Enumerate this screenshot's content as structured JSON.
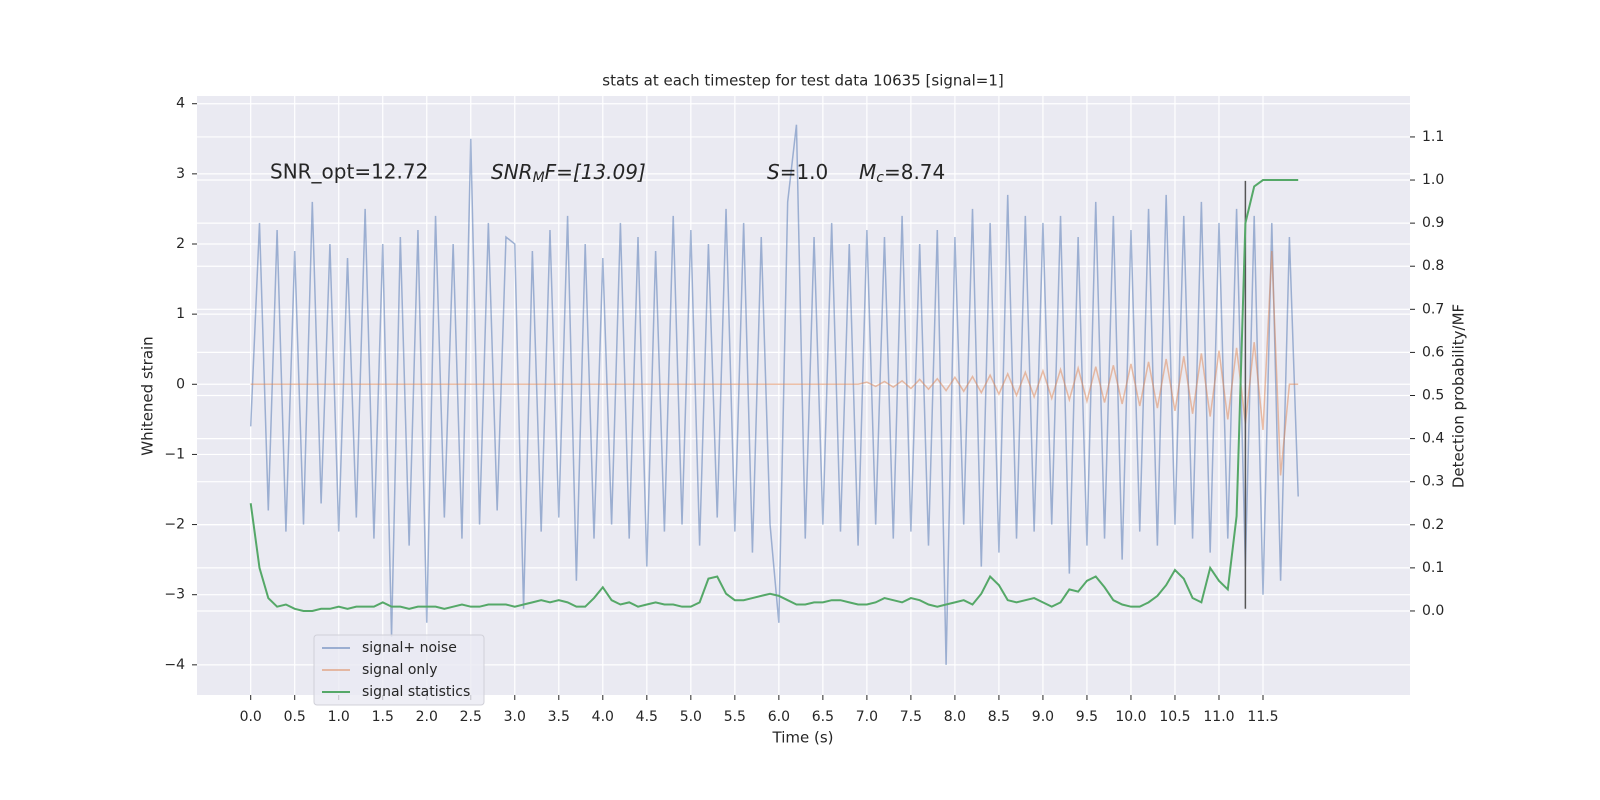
{
  "chart_data": {
    "type": "line",
    "title": "stats at each timestep for test data 10635 [signal=1]",
    "xlabel": "Time (s)",
    "ylabel": "Whitened strain",
    "y2label": "Detection probability/MF",
    "annotations": {
      "snr_opt": "SNR_opt=12.72",
      "snr_mf": {
        "base": "SNR",
        "sub": "M",
        "rest": "F=[13.09]"
      },
      "s": {
        "base": "S",
        "rest": "=1.0"
      },
      "mc": {
        "base": "M",
        "sub": "c",
        "rest": "=8.74"
      }
    },
    "grid": true,
    "legend": "lower left",
    "xlim": [
      -0.61,
      13.17
    ],
    "ylim": [
      -4.43,
      4.11
    ],
    "y2lim": [
      -0.195,
      1.195
    ],
    "xticks": [
      {
        "value": 0,
        "label": "0.0"
      },
      {
        "value": 0.5,
        "label": "0.5"
      },
      {
        "value": 1,
        "label": "1.0"
      },
      {
        "value": 1.5,
        "label": "1.5"
      },
      {
        "value": 2,
        "label": "2.0"
      },
      {
        "value": 2.5,
        "label": "2.5"
      },
      {
        "value": 3,
        "label": "3.0"
      },
      {
        "value": 3.5,
        "label": "3.5"
      },
      {
        "value": 4,
        "label": "4.0"
      },
      {
        "value": 4.5,
        "label": "4.5"
      },
      {
        "value": 5,
        "label": "5.0"
      },
      {
        "value": 5.5,
        "label": "5.5"
      },
      {
        "value": 6,
        "label": "6.0"
      },
      {
        "value": 6.5,
        "label": "6.5"
      },
      {
        "value": 7,
        "label": "7.0"
      },
      {
        "value": 7.5,
        "label": "7.5"
      },
      {
        "value": 8,
        "label": "8.0"
      },
      {
        "value": 8.5,
        "label": "8.5"
      },
      {
        "value": 9,
        "label": "9.0"
      },
      {
        "value": 9.5,
        "label": "9.5"
      },
      {
        "value": 10,
        "label": "10.0"
      },
      {
        "value": 10.5,
        "label": "10.5"
      },
      {
        "value": 11,
        "label": "11.0"
      },
      {
        "value": 11.5,
        "label": "11.5"
      }
    ],
    "yticks": [
      {
        "value": -4,
        "label": "−4"
      },
      {
        "value": -3,
        "label": "−3"
      },
      {
        "value": -2,
        "label": "−2"
      },
      {
        "value": -1,
        "label": "−1"
      },
      0,
      1,
      2,
      3,
      4
    ],
    "y2ticks": [
      {
        "value": 0,
        "label": "0.0"
      },
      {
        "value": 0.1,
        "label": "0.1"
      },
      {
        "value": 0.2,
        "label": "0.2"
      },
      {
        "value": 0.3,
        "label": "0.3"
      },
      {
        "value": 0.4,
        "label": "0.4"
      },
      {
        "value": 0.5,
        "label": "0.5"
      },
      {
        "value": 0.6,
        "label": "0.6"
      },
      {
        "value": 0.7,
        "label": "0.7"
      },
      {
        "value": 0.8,
        "label": "0.8"
      },
      {
        "value": 0.9,
        "label": "0.9"
      },
      {
        "value": 1.0,
        "label": "1.0"
      },
      {
        "value": 1.1,
        "label": "1.1"
      }
    ],
    "x": [
      0,
      0.1,
      0.2,
      0.3,
      0.4,
      0.5,
      0.6,
      0.7,
      0.8,
      0.9,
      1,
      1.1,
      1.2,
      1.3,
      1.4,
      1.5,
      1.6,
      1.7,
      1.8,
      1.9,
      2,
      2.1,
      2.2,
      2.3,
      2.4,
      2.5,
      2.6,
      2.7,
      2.8,
      2.9,
      3,
      3.1,
      3.2,
      3.3,
      3.4,
      3.5,
      3.6,
      3.7,
      3.8,
      3.9,
      4,
      4.1,
      4.2,
      4.3,
      4.4,
      4.5,
      4.6,
      4.7,
      4.8,
      4.9,
      5,
      5.1,
      5.2,
      5.3,
      5.4,
      5.5,
      5.6,
      5.7,
      5.8,
      5.9,
      6,
      6.1,
      6.2,
      6.3,
      6.4,
      6.5,
      6.6,
      6.7,
      6.8,
      6.9,
      7,
      7.1,
      7.2,
      7.3,
      7.4,
      7.5,
      7.6,
      7.7,
      7.8,
      7.9,
      8,
      8.1,
      8.2,
      8.3,
      8.4,
      8.5,
      8.6,
      8.7,
      8.8,
      8.9,
      9,
      9.1,
      9.2,
      9.3,
      9.4,
      9.5,
      9.6,
      9.7,
      9.8,
      9.9,
      10,
      10.1,
      10.2,
      10.3,
      10.4,
      10.5,
      10.6,
      10.7,
      10.8,
      10.9,
      11,
      11.1,
      11.2,
      11.3,
      11.4,
      11.5,
      11.6,
      11.7,
      11.8,
      11.9
    ],
    "series": [
      {
        "name": "signal+ noise",
        "color": "#4c72b0",
        "alpha": 0.5,
        "axis": "y",
        "values": [
          -0.6,
          2.3,
          -1.8,
          2.2,
          -2.1,
          1.9,
          -2.0,
          2.6,
          -1.7,
          2.0,
          -2.1,
          1.8,
          -1.9,
          2.5,
          -2.2,
          2.0,
          -3.6,
          2.1,
          -2.3,
          2.2,
          -3.4,
          2.4,
          -1.9,
          2.0,
          -2.2,
          3.5,
          -2.0,
          2.3,
          -1.8,
          2.1,
          2.0,
          -3.2,
          1.9,
          -2.1,
          2.2,
          -1.9,
          2.4,
          -2.8,
          2.0,
          -2.2,
          1.8,
          -2.0,
          2.3,
          -2.2,
          2.1,
          -2.6,
          1.9,
          -2.1,
          2.4,
          -2.0,
          2.2,
          -2.3,
          2.0,
          -1.9,
          2.5,
          -2.1,
          2.3,
          -2.4,
          2.1,
          -2.0,
          -3.4,
          2.6,
          3.7,
          -2.2,
          2.1,
          -2.0,
          2.3,
          -2.1,
          2.0,
          -2.3,
          2.2,
          -2.0,
          2.1,
          -2.2,
          2.4,
          -2.1,
          2.0,
          -2.3,
          2.2,
          -4.0,
          2.1,
          -2.0,
          2.5,
          -2.6,
          2.3,
          -2.4,
          2.7,
          -2.2,
          2.4,
          -2.1,
          2.3,
          -2.0,
          2.4,
          -2.7,
          2.1,
          -2.3,
          2.6,
          -2.2,
          2.4,
          -2.5,
          2.2,
          -2.1,
          2.5,
          -2.3,
          2.7,
          -2.0,
          2.4,
          -2.2,
          2.6,
          -2.4,
          2.3,
          -2.2,
          2.5,
          -2.6,
          2.4,
          -3.0,
          2.3,
          -2.8,
          2.1,
          -1.6
        ]
      },
      {
        "name": "signal only",
        "color": "#dd8452",
        "alpha": 0.5,
        "axis": "y",
        "values": [
          0,
          0,
          0,
          0,
          0,
          0,
          0,
          0,
          0,
          0,
          0,
          0,
          0,
          0,
          0,
          0,
          0,
          0,
          0,
          0,
          0,
          0,
          0,
          0,
          0,
          0,
          0,
          0,
          0,
          0,
          0,
          0,
          0,
          0,
          0,
          0,
          0,
          0,
          0,
          0,
          0,
          0,
          0,
          0,
          0,
          0,
          0,
          0,
          0,
          0,
          0,
          0,
          0,
          0,
          0,
          0,
          0,
          0,
          0,
          0,
          0,
          0,
          0,
          0,
          0,
          0,
          0,
          0,
          0,
          0,
          0.03,
          -0.03,
          0.04,
          -0.04,
          0.05,
          -0.06,
          0.07,
          -0.07,
          0.08,
          -0.09,
          0.1,
          -0.1,
          0.11,
          -0.12,
          0.13,
          -0.14,
          0.15,
          -0.16,
          0.17,
          -0.18,
          0.19,
          -0.2,
          0.21,
          -0.22,
          0.23,
          -0.24,
          0.25,
          -0.26,
          0.27,
          -0.28,
          0.29,
          -0.31,
          0.32,
          -0.34,
          0.36,
          -0.38,
          0.4,
          -0.42,
          0.44,
          -0.46,
          0.48,
          -0.5,
          0.52,
          -0.56,
          0.6,
          -0.65,
          1.9,
          -1.3,
          0,
          0
        ]
      },
      {
        "name": "signal statistics",
        "color": "#55a868",
        "alpha": 1,
        "axis": "y2",
        "values": [
          0.25,
          0.1,
          0.03,
          0.01,
          0.015,
          0.005,
          0.0,
          0.0,
          0.005,
          0.005,
          0.01,
          0.005,
          0.01,
          0.01,
          0.01,
          0.02,
          0.01,
          0.01,
          0.005,
          0.01,
          0.01,
          0.01,
          0.005,
          0.01,
          0.015,
          0.01,
          0.01,
          0.015,
          0.015,
          0.015,
          0.01,
          0.015,
          0.02,
          0.025,
          0.02,
          0.025,
          0.02,
          0.01,
          0.01,
          0.03,
          0.055,
          0.025,
          0.015,
          0.02,
          0.01,
          0.015,
          0.02,
          0.015,
          0.015,
          0.01,
          0.01,
          0.02,
          0.075,
          0.08,
          0.04,
          0.025,
          0.025,
          0.03,
          0.035,
          0.04,
          0.035,
          0.025,
          0.015,
          0.015,
          0.02,
          0.02,
          0.025,
          0.025,
          0.02,
          0.015,
          0.015,
          0.02,
          0.03,
          0.025,
          0.02,
          0.03,
          0.025,
          0.015,
          0.01,
          0.015,
          0.02,
          0.025,
          0.015,
          0.04,
          0.08,
          0.06,
          0.025,
          0.02,
          0.025,
          0.03,
          0.02,
          0.01,
          0.02,
          0.05,
          0.045,
          0.07,
          0.08,
          0.055,
          0.025,
          0.015,
          0.01,
          0.01,
          0.02,
          0.035,
          0.06,
          0.095,
          0.075,
          0.03,
          0.02,
          0.1,
          0.07,
          0.05,
          0.22,
          0.9,
          0.985,
          1.0,
          1.0,
          1.0,
          1.0,
          1.0
        ]
      }
    ],
    "vline": {
      "x": 11.3,
      "y": [
        -3.2,
        2.9
      ],
      "color": "#555555"
    }
  }
}
